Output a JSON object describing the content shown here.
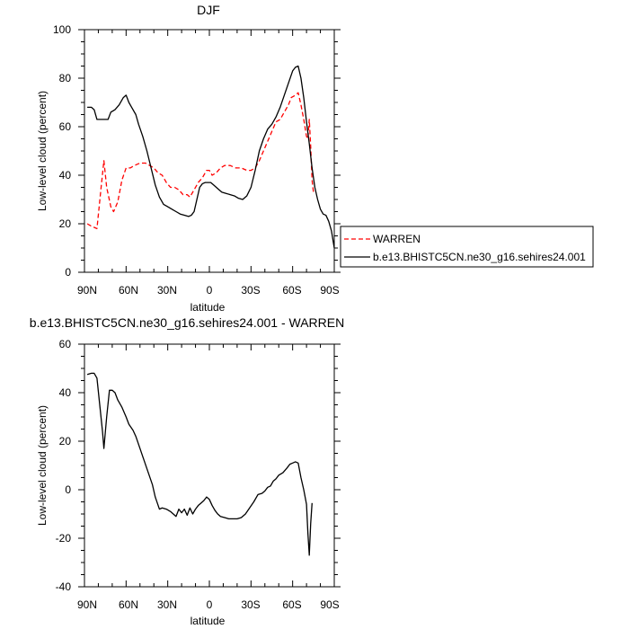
{
  "chart_data": [
    {
      "type": "line",
      "title": "DJF",
      "xlabel": "latitude",
      "ylabel": "Low-level cloud (percent)",
      "xlim": [
        90,
        -90
      ],
      "ylim": [
        0,
        100
      ],
      "x_tick_labels": [
        "90N",
        "60N",
        "30N",
        "0",
        "30S",
        "60S",
        "90S"
      ],
      "y_tick_labels": [
        "0",
        "20",
        "40",
        "60",
        "80",
        "100"
      ],
      "legend_position": "right, outside plot",
      "series": [
        {
          "name": "WARREN",
          "color": "#ff0000",
          "dash": "dashed",
          "points": [
            [
              88,
              20
            ],
            [
              85,
              19
            ],
            [
              81,
              18
            ],
            [
              78,
              35
            ],
            [
              76,
              46
            ],
            [
              74,
              35
            ],
            [
              71,
              27
            ],
            [
              69,
              25
            ],
            [
              66,
              29
            ],
            [
              63,
              38
            ],
            [
              60,
              43
            ],
            [
              57,
              43
            ],
            [
              54,
              44
            ],
            [
              50,
              45
            ],
            [
              46,
              45
            ],
            [
              43,
              44
            ],
            [
              40,
              43
            ],
            [
              37,
              41
            ],
            [
              34,
              40
            ],
            [
              31,
              37
            ],
            [
              28,
              35
            ],
            [
              25,
              35
            ],
            [
              22,
              34
            ],
            [
              19,
              32
            ],
            [
              16,
              32
            ],
            [
              14,
              31
            ],
            [
              11,
              34
            ],
            [
              8,
              37
            ],
            [
              5,
              39
            ],
            [
              2,
              42
            ],
            [
              0,
              42
            ],
            [
              -2,
              40
            ],
            [
              -5,
              41
            ],
            [
              -8,
              43
            ],
            [
              -11,
              44
            ],
            [
              -15,
              44
            ],
            [
              -19,
              43
            ],
            [
              -23,
              43
            ],
            [
              -27,
              42
            ],
            [
              -30,
              42
            ],
            [
              -33,
              43
            ],
            [
              -36,
              46
            ],
            [
              -39,
              50
            ],
            [
              -42,
              54
            ],
            [
              -45,
              58
            ],
            [
              -48,
              62
            ],
            [
              -51,
              63
            ],
            [
              -54,
              66
            ],
            [
              -57,
              69
            ],
            [
              -59,
              72
            ],
            [
              -62,
              73
            ],
            [
              -64,
              74
            ],
            [
              -66,
              69
            ],
            [
              -68,
              63
            ],
            [
              -70,
              56
            ],
            [
              -71,
              55
            ],
            [
              -72,
              63
            ],
            [
              -73,
              52
            ],
            [
              -74,
              38
            ],
            [
              -75,
              33
            ]
          ]
        },
        {
          "name": "b.e13.BHISTC5CN.ne30_g16.sehires24.001",
          "color": "#000000",
          "dash": "solid",
          "points": [
            [
              88,
              68
            ],
            [
              85,
              68
            ],
            [
              83,
              67
            ],
            [
              81,
              63
            ],
            [
              78,
              63
            ],
            [
              75,
              63
            ],
            [
              73,
              63
            ],
            [
              71,
              66
            ],
            [
              68,
              67
            ],
            [
              65,
              69
            ],
            [
              62,
              72
            ],
            [
              60,
              73
            ],
            [
              58,
              70
            ],
            [
              56,
              68
            ],
            [
              53,
              65
            ],
            [
              51,
              61
            ],
            [
              48,
              56
            ],
            [
              45,
              50
            ],
            [
              42,
              43
            ],
            [
              39,
              36
            ],
            [
              36,
              31
            ],
            [
              33,
              28
            ],
            [
              30,
              27
            ],
            [
              27,
              26
            ],
            [
              24,
              25
            ],
            [
              21,
              24
            ],
            [
              18,
              23.5
            ],
            [
              15,
              23
            ],
            [
              13,
              23.5
            ],
            [
              11,
              25
            ],
            [
              9,
              30
            ],
            [
              7,
              35
            ],
            [
              5,
              36.5
            ],
            [
              3,
              37
            ],
            [
              1,
              37
            ],
            [
              -1,
              37
            ],
            [
              -3,
              36
            ],
            [
              -5,
              35
            ],
            [
              -7,
              34
            ],
            [
              -9,
              33
            ],
            [
              -12,
              32.5
            ],
            [
              -15,
              32
            ],
            [
              -18,
              31.5
            ],
            [
              -21,
              30.5
            ],
            [
              -24,
              30
            ],
            [
              -27,
              31.5
            ],
            [
              -30,
              35
            ],
            [
              -33,
              42
            ],
            [
              -36,
              50
            ],
            [
              -39,
              55
            ],
            [
              -42,
              59
            ],
            [
              -45,
              61
            ],
            [
              -48,
              64
            ],
            [
              -51,
              68
            ],
            [
              -54,
              73
            ],
            [
              -57,
              78
            ],
            [
              -60,
              83
            ],
            [
              -62,
              84.5
            ],
            [
              -64,
              85
            ],
            [
              -66,
              80
            ],
            [
              -68,
              72
            ],
            [
              -70,
              62
            ],
            [
              -72,
              53
            ],
            [
              -74,
              43
            ],
            [
              -76,
              35
            ],
            [
              -78,
              30
            ],
            [
              -80,
              26
            ],
            [
              -82,
              24
            ],
            [
              -84,
              23.5
            ],
            [
              -86,
              21
            ],
            [
              -88,
              17
            ],
            [
              -90,
              10
            ]
          ]
        }
      ]
    },
    {
      "type": "line",
      "title": "b.e13.BHISTC5CN.ne30_g16.sehires24.001 - WARREN",
      "xlabel": "latitude",
      "ylabel": "Low-level cloud (percent)",
      "xlim": [
        90,
        -90
      ],
      "ylim": [
        -40,
        60
      ],
      "x_tick_labels": [
        "90N",
        "60N",
        "30N",
        "0",
        "30S",
        "60S",
        "90S"
      ],
      "y_tick_labels": [
        "-40",
        "-20",
        "0",
        "20",
        "40",
        "60"
      ],
      "series": [
        {
          "color": "#000000",
          "dash": "solid",
          "points": [
            [
              88,
              47.5
            ],
            [
              85,
              48
            ],
            [
              83,
              48
            ],
            [
              81,
              46
            ],
            [
              79,
              35
            ],
            [
              77,
              24
            ],
            [
              76,
              17
            ],
            [
              74,
              30
            ],
            [
              72,
              41
            ],
            [
              70,
              41
            ],
            [
              68,
              40
            ],
            [
              66,
              37
            ],
            [
              63,
              34
            ],
            [
              60,
              30
            ],
            [
              58,
              27
            ],
            [
              55,
              24.5
            ],
            [
              53,
              22
            ],
            [
              50,
              17
            ],
            [
              47,
              12
            ],
            [
              44,
              7
            ],
            [
              41,
              2
            ],
            [
              39,
              -3
            ],
            [
              36,
              -8
            ],
            [
              34,
              -7.5
            ],
            [
              31,
              -8
            ],
            [
              28,
              -9
            ],
            [
              26,
              -10
            ],
            [
              24,
              -11
            ],
            [
              22,
              -8
            ],
            [
              20,
              -9.5
            ],
            [
              18,
              -8
            ],
            [
              16,
              -10.5
            ],
            [
              14,
              -7.5
            ],
            [
              12,
              -10
            ],
            [
              10,
              -8
            ],
            [
              8,
              -6.5
            ],
            [
              6,
              -5.5
            ],
            [
              4,
              -4.5
            ],
            [
              2,
              -3
            ],
            [
              0,
              -4
            ],
            [
              -2,
              -6.5
            ],
            [
              -4,
              -8.5
            ],
            [
              -6,
              -10
            ],
            [
              -8,
              -11
            ],
            [
              -11,
              -11.5
            ],
            [
              -14,
              -12
            ],
            [
              -17,
              -12
            ],
            [
              -20,
              -12
            ],
            [
              -23,
              -11.5
            ],
            [
              -26,
              -10
            ],
            [
              -29,
              -7.5
            ],
            [
              -32,
              -5
            ],
            [
              -35,
              -2
            ],
            [
              -38,
              -1.5
            ],
            [
              -40,
              -0.5
            ],
            [
              -42,
              1
            ],
            [
              -44,
              1.5
            ],
            [
              -46,
              3.5
            ],
            [
              -48,
              4.5
            ],
            [
              -50,
              6
            ],
            [
              -53,
              7
            ],
            [
              -56,
              9
            ],
            [
              -58,
              10.5
            ],
            [
              -60,
              11
            ],
            [
              -62,
              11.5
            ],
            [
              -64,
              11
            ],
            [
              -66,
              5
            ],
            [
              -68,
              0
            ],
            [
              -70,
              -6
            ],
            [
              -71,
              -18
            ],
            [
              -72,
              -27
            ],
            [
              -73,
              -14
            ],
            [
              -74,
              -5.5
            ]
          ]
        }
      ]
    }
  ]
}
